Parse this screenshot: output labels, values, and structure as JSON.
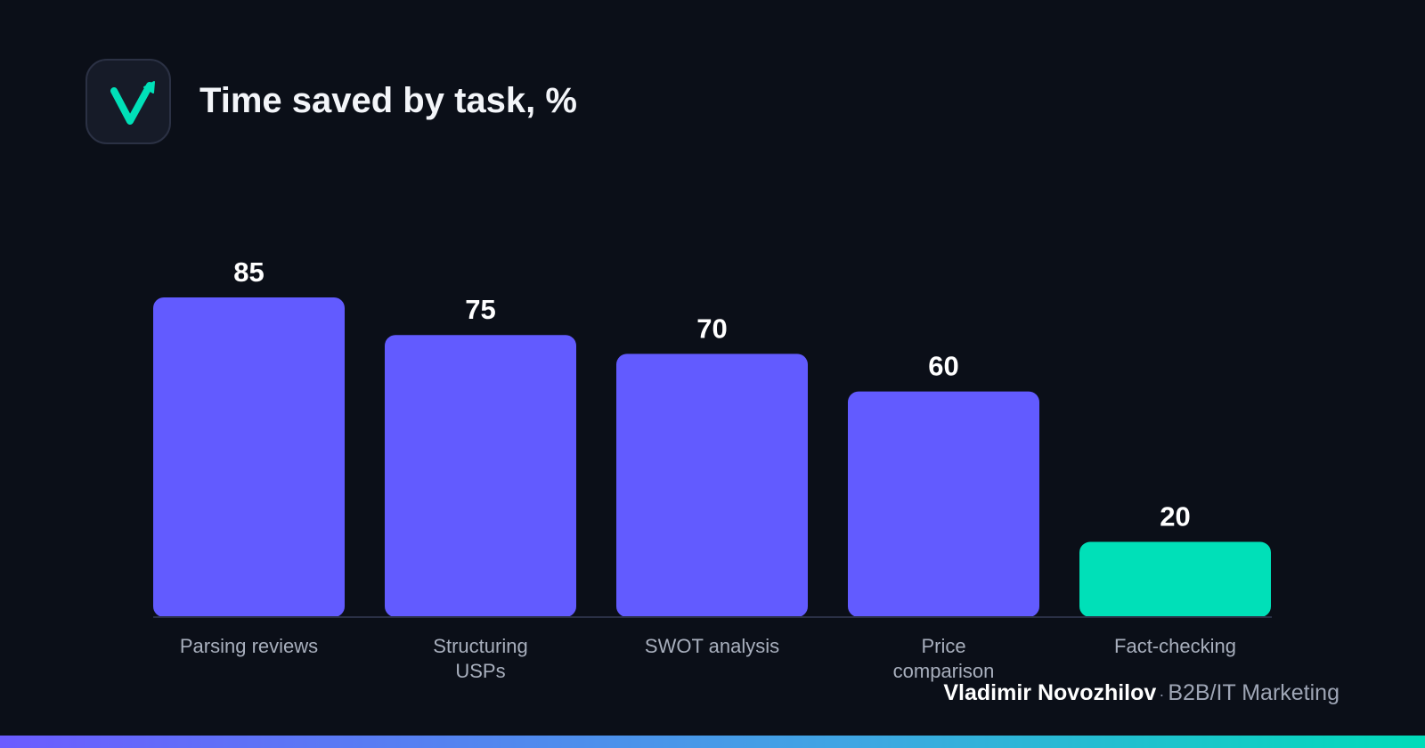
{
  "header": {
    "title": "Time saved by task, %"
  },
  "footer": {
    "author": "Vladimir Novozhilov",
    "separator": "·",
    "role": "B2B/IT Marketing"
  },
  "colors": {
    "bar": "#625bff",
    "highlight": "#00e0b8",
    "background": "#0b0f18",
    "baseline": "#2a3045"
  },
  "chart_data": {
    "type": "bar",
    "title": "Time saved by task, %",
    "categories": [
      "Parsing reviews",
      "Structuring USPs",
      "SWOT analysis",
      "Price comparison",
      "Fact-checking"
    ],
    "category_lines": [
      [
        "Parsing reviews"
      ],
      [
        "Structuring",
        "USPs"
      ],
      [
        "SWOT analysis"
      ],
      [
        "Price",
        "comparison"
      ],
      [
        "Fact-checking"
      ]
    ],
    "values": [
      85,
      75,
      70,
      60,
      20
    ],
    "value_labels": [
      "85",
      "75",
      "70",
      "60",
      "20"
    ],
    "highlight_index": 4,
    "ylim": [
      0,
      85
    ],
    "grid": false,
    "legend": "none"
  }
}
